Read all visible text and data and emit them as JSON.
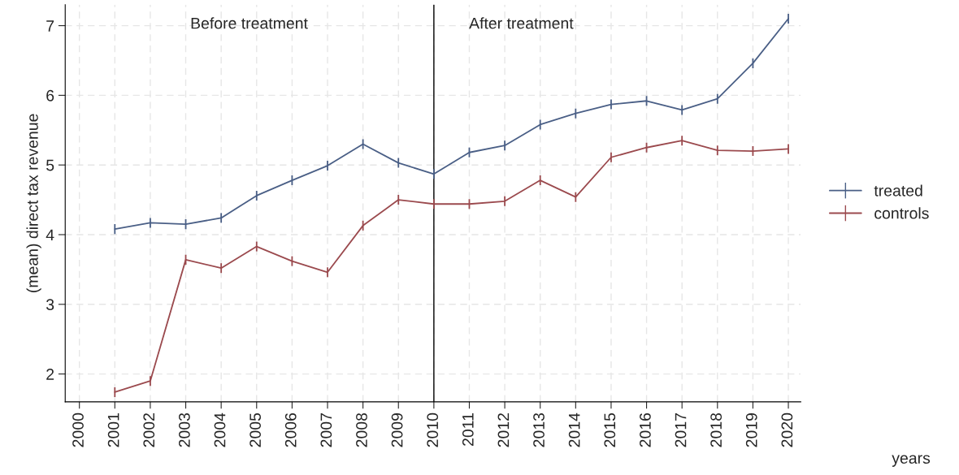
{
  "chart_data": {
    "type": "line",
    "ylabel": "(mean) direct tax revenue",
    "x": [
      2001,
      2002,
      2003,
      2004,
      2005,
      2006,
      2007,
      2008,
      2009,
      2010,
      2011,
      2012,
      2013,
      2014,
      2015,
      2016,
      2017,
      2018,
      2019,
      2020
    ],
    "series": [
      {
        "name": "treated",
        "color": "#4a5f86",
        "values": [
          4.08,
          4.17,
          4.15,
          4.24,
          4.56,
          4.78,
          4.99,
          5.3,
          5.03,
          4.87,
          5.18,
          5.28,
          5.58,
          5.74,
          5.87,
          5.92,
          5.79,
          5.95,
          6.46,
          7.1
        ],
        "errors": [
          0.07,
          0.07,
          0.07,
          0.07,
          0.07,
          0.07,
          0.07,
          0.07,
          0.07,
          0.07,
          0.07,
          0.07,
          0.07,
          0.07,
          0.07,
          0.07,
          0.07,
          0.07,
          0.07,
          0.07
        ]
      },
      {
        "name": "controls",
        "color": "#9b4a4e",
        "values": [
          1.74,
          1.9,
          3.64,
          3.52,
          3.83,
          3.62,
          3.46,
          4.13,
          4.5,
          4.44,
          4.44,
          4.48,
          4.78,
          4.54,
          5.11,
          5.25,
          5.35,
          5.21,
          5.2,
          5.23
        ],
        "errors": [
          0.07,
          0.07,
          0.07,
          0.07,
          0.07,
          0.07,
          0.07,
          0.07,
          0.07,
          0.07,
          0.07,
          0.07,
          0.07,
          0.07,
          0.07,
          0.07,
          0.07,
          0.07,
          0.07,
          0.07
        ]
      }
    ],
    "xlim": [
      1999.6,
      2020.35
    ],
    "xticks": [
      2000,
      2001,
      2002,
      2003,
      2004,
      2005,
      2006,
      2007,
      2008,
      2009,
      2010,
      2011,
      2012,
      2013,
      2014,
      2015,
      2016,
      2017,
      2018,
      2019,
      2020
    ],
    "ylim": [
      1.6,
      7.3
    ],
    "yticks": [
      2,
      3,
      4,
      5,
      6,
      7
    ],
    "ref_lines": [
      {
        "axis": "x",
        "value": 2010,
        "color": "#000000"
      }
    ],
    "annotations": [
      "Before treatment",
      "After treatment",
      "years"
    ],
    "grid": true,
    "legend": "right"
  }
}
